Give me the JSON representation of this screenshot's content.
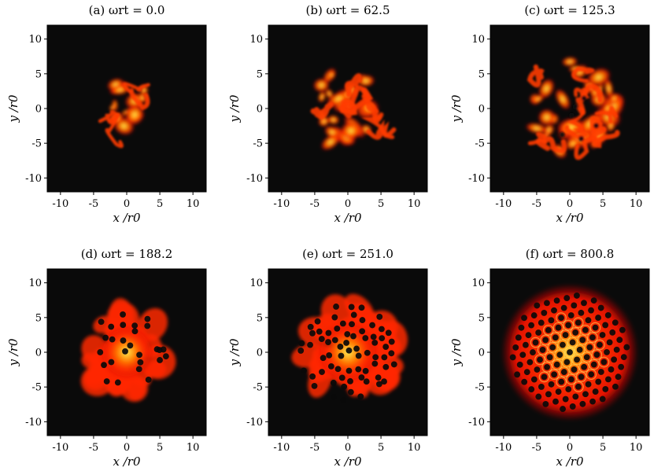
{
  "chart_data": [
    {
      "type": "heatmap",
      "title": "(a) ωrt = 0.0",
      "xlabel": "x /r0",
      "ylabel": "y /r0",
      "xlim": [
        -12,
        12
      ],
      "ylim": [
        -12,
        12
      ],
      "xticks": [
        -10,
        -5,
        0,
        5,
        10
      ],
      "yticks": [
        -10,
        -5,
        0,
        5,
        10
      ],
      "colormap": [
        "#0a0a0a",
        "#b00000",
        "#ff2a00",
        "#ff8800",
        "#ffee55"
      ],
      "state": "irregular turbulent patches, no vortex lattice",
      "cloud_radius": 4.5
    },
    {
      "type": "heatmap",
      "title": "(b) ωrt = 62.5",
      "xlabel": "x /r0",
      "ylabel": "y /r0",
      "xlim": [
        -12,
        12
      ],
      "ylim": [
        -12,
        12
      ],
      "xticks": [
        -10,
        -5,
        0,
        5,
        10
      ],
      "yticks": [
        -10,
        -5,
        0,
        5,
        10
      ],
      "colormap": [
        "#0a0a0a",
        "#b00000",
        "#ff2a00",
        "#ff8800",
        "#ffee55"
      ],
      "state": "spreading irregular filaments",
      "cloud_radius": 6.5
    },
    {
      "type": "heatmap",
      "title": "(c) ωrt = 125.3",
      "xlabel": "x /r0",
      "ylabel": "y /r0",
      "xlim": [
        -12,
        12
      ],
      "ylim": [
        -12,
        12
      ],
      "xticks": [
        -10,
        -5,
        0,
        5,
        10
      ],
      "yticks": [
        -10,
        -5,
        0,
        5,
        10
      ],
      "colormap": [
        "#0a0a0a",
        "#b00000",
        "#ff2a00",
        "#ff8800",
        "#ffee55"
      ],
      "state": "irregular filaments with first vortices",
      "cloud_radius": 8
    },
    {
      "type": "heatmap",
      "title": "(d) ωrt = 188.2",
      "xlabel": "x /r0",
      "ylabel": "y /r0",
      "xlim": [
        -12,
        12
      ],
      "ylim": [
        -12,
        12
      ],
      "xticks": [
        -10,
        -5,
        0,
        5,
        10
      ],
      "yticks": [
        -10,
        -5,
        0,
        5,
        10
      ],
      "colormap": [
        "#0a0a0a",
        "#b00000",
        "#ff2a00",
        "#ff8800",
        "#ffee55"
      ],
      "state": "dense cloud with scattered vortices",
      "cloud_radius": 7.5
    },
    {
      "type": "heatmap",
      "title": "(e) ωrt = 251.0",
      "xlabel": "x /r0",
      "ylabel": "y /r0",
      "xlim": [
        -12,
        12
      ],
      "ylim": [
        -12,
        12
      ],
      "xticks": [
        -10,
        -5,
        0,
        5,
        10
      ],
      "yticks": [
        -10,
        -5,
        0,
        5,
        10
      ],
      "colormap": [
        "#0a0a0a",
        "#b00000",
        "#ff2a00",
        "#ff8800",
        "#ffee55"
      ],
      "state": "partially ordered vortex lattice",
      "cloud_radius": 8.5
    },
    {
      "type": "heatmap",
      "title": "(f) ωrt = 800.8",
      "xlabel": "x /r0",
      "ylabel": "y /r0",
      "xlim": [
        -12,
        12
      ],
      "ylim": [
        -12,
        12
      ],
      "xticks": [
        -10,
        -5,
        0,
        5,
        10
      ],
      "yticks": [
        -10,
        -5,
        0,
        5,
        10
      ],
      "colormap": [
        "#0a0a0a",
        "#b00000",
        "#ff2a00",
        "#ff8800",
        "#ffee55"
      ],
      "state": "ordered triangular vortex lattice",
      "cloud_radius": 10
    }
  ]
}
